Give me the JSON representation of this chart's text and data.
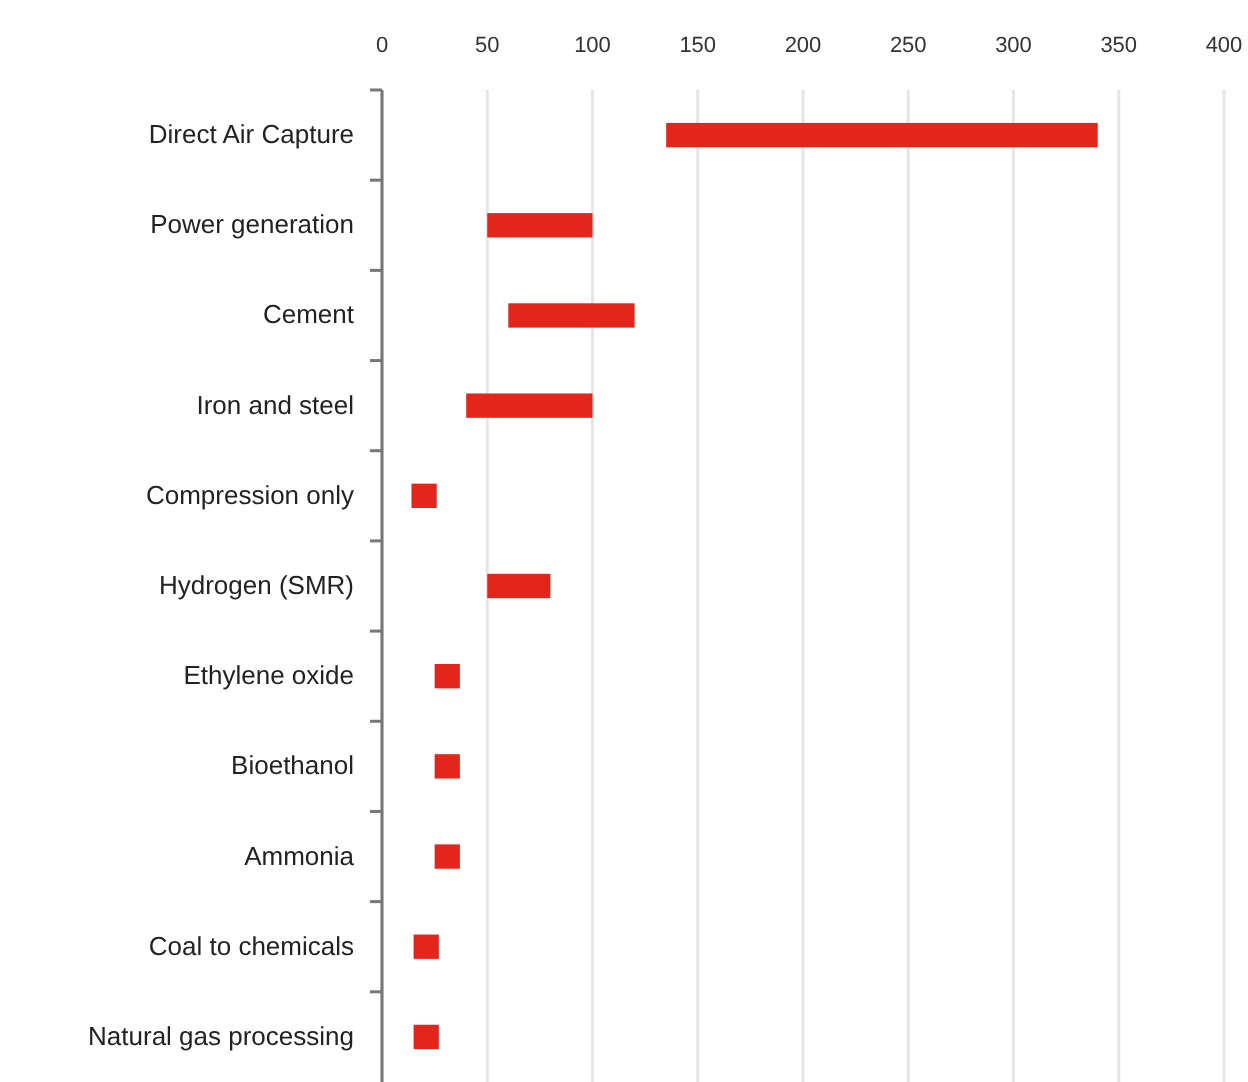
{
  "chart_data": {
    "type": "bar",
    "orientation": "horizontal",
    "categories": [
      "Direct Air Capture",
      "Power generation",
      "Cement",
      "Iron and steel",
      "Compression only",
      "Hydrogen (SMR)",
      "Ethylene oxide",
      "Bioethanol",
      "Ammonia",
      "Coal to chemicals",
      "Natural gas processing"
    ],
    "base": [
      135,
      50,
      60,
      40,
      14,
      50,
      25,
      25,
      25,
      15,
      15
    ],
    "values": [
      205,
      50,
      60,
      60,
      12,
      30,
      12,
      12,
      12,
      12,
      12
    ],
    "color": "#e2261c",
    "xlim": [
      0,
      400
    ],
    "xticks": [
      0,
      50,
      100,
      150,
      200,
      250,
      300,
      350,
      400
    ],
    "grid": "x"
  }
}
